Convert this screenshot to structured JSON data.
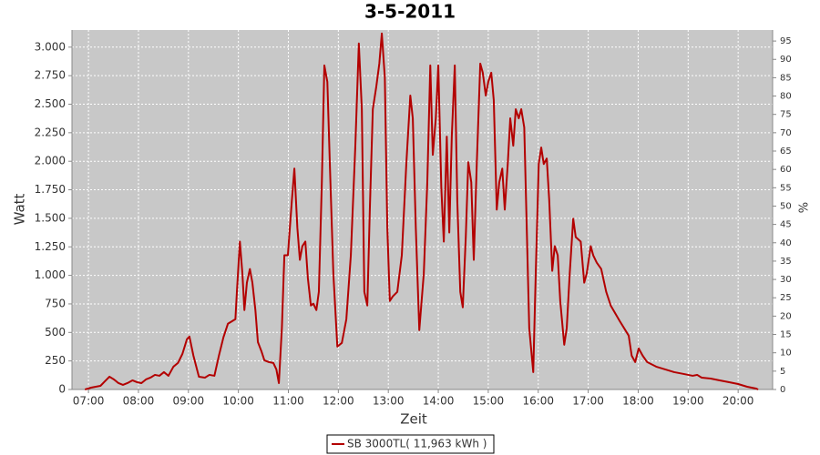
{
  "chart_data": {
    "type": "line",
    "title": "3-5-2011",
    "xlabel": "Zeit",
    "ylabel": "Watt",
    "y2label": "%",
    "xlim": [
      6.67,
      20.69
    ],
    "xticks": [
      {
        "value": 7,
        "label": "07:00"
      },
      {
        "value": 8,
        "label": "08:00"
      },
      {
        "value": 9,
        "label": "09:00"
      },
      {
        "value": 10,
        "label": "10:00"
      },
      {
        "value": 11,
        "label": "11:00"
      },
      {
        "value": 12,
        "label": "12:00"
      },
      {
        "value": 13,
        "label": "13:00"
      },
      {
        "value": 14,
        "label": "14:00"
      },
      {
        "value": 15,
        "label": "15:00"
      },
      {
        "value": 16,
        "label": "16:00"
      },
      {
        "value": 17,
        "label": "17:00"
      },
      {
        "value": 18,
        "label": "18:00"
      },
      {
        "value": 19,
        "label": "19:00"
      },
      {
        "value": 20,
        "label": "20:00"
      }
    ],
    "ylim": [
      0,
      3150
    ],
    "yticks": [
      0,
      250,
      500,
      750,
      {
        "value": 1000,
        "label": "1.000"
      },
      {
        "value": 1250,
        "label": "1.250"
      },
      {
        "value": 1500,
        "label": "1.500"
      },
      {
        "value": 1750,
        "label": "1.750"
      },
      {
        "value": 2000,
        "label": "2.000"
      },
      {
        "value": 2250,
        "label": "2.250"
      },
      {
        "value": 2500,
        "label": "2.500"
      },
      {
        "value": 2750,
        "label": "2.750"
      },
      {
        "value": 3000,
        "label": "3.000"
      }
    ],
    "y2lim": [
      0,
      98
    ],
    "y2ticks": [
      0,
      5,
      10,
      15,
      20,
      25,
      30,
      35,
      40,
      45,
      50,
      55,
      60,
      65,
      70,
      75,
      80,
      85,
      90,
      95
    ],
    "grid": true,
    "legend": "bottom",
    "series": [
      {
        "name": "SB 3000TL( 11,963 kWh )",
        "color": "#b30000",
        "x": [
          6.93,
          7.05,
          7.24,
          7.33,
          7.42,
          7.51,
          7.6,
          7.69,
          7.78,
          7.88,
          7.97,
          8.06,
          8.15,
          8.24,
          8.33,
          8.42,
          8.51,
          8.6,
          8.7,
          8.79,
          8.88,
          8.97,
          9.02,
          9.1,
          9.21,
          9.33,
          9.42,
          9.52,
          9.61,
          9.7,
          9.79,
          9.88,
          9.94,
          9.97,
          10.03,
          10.08,
          10.12,
          10.17,
          10.23,
          10.28,
          10.34,
          10.39,
          10.46,
          10.52,
          10.61,
          10.7,
          10.76,
          10.81,
          10.87,
          10.92,
          10.99,
          11.07,
          11.12,
          11.18,
          11.23,
          11.28,
          11.34,
          11.39,
          11.45,
          11.5,
          11.56,
          11.61,
          11.67,
          11.72,
          11.78,
          11.83,
          11.9,
          11.98,
          12.07,
          12.16,
          12.25,
          12.34,
          12.41,
          12.47,
          12.52,
          12.58,
          12.63,
          12.69,
          12.76,
          12.82,
          12.87,
          12.93,
          12.98,
          13.03,
          13.09,
          13.18,
          13.27,
          13.36,
          13.44,
          13.49,
          13.55,
          13.62,
          13.71,
          13.78,
          13.84,
          13.89,
          13.95,
          14.0,
          14.06,
          14.11,
          14.17,
          14.22,
          14.27,
          14.33,
          14.38,
          14.44,
          14.49,
          14.55,
          14.6,
          14.66,
          14.71,
          14.77,
          14.84,
          14.89,
          14.95,
          15.0,
          15.06,
          15.11,
          15.17,
          15.22,
          15.28,
          15.33,
          15.39,
          15.44,
          15.5,
          15.55,
          15.61,
          15.66,
          15.72,
          15.77,
          15.82,
          15.9,
          15.95,
          16.01,
          16.06,
          16.11,
          16.17,
          16.22,
          16.28,
          16.33,
          16.39,
          16.44,
          16.52,
          16.57,
          16.63,
          16.7,
          16.75,
          16.85,
          16.92,
          16.97,
          17.05,
          17.1,
          17.17,
          17.26,
          17.36,
          17.45,
          17.63,
          17.81,
          17.87,
          17.94,
          18.01,
          18.09,
          18.18,
          18.36,
          18.54,
          18.72,
          18.91,
          19.09,
          19.18,
          19.27,
          19.45,
          19.63,
          19.82,
          20.0,
          20.18,
          20.36,
          20.4
        ],
        "values": [
          0,
          16,
          32,
          72,
          112,
          88,
          56,
          40,
          56,
          80,
          64,
          56,
          88,
          104,
          128,
          120,
          152,
          120,
          200,
          232,
          312,
          440,
          464,
          296,
          112,
          104,
          128,
          120,
          296,
          456,
          576,
          600,
          616,
          856,
          1296,
          1016,
          696,
          936,
          1056,
          936,
          696,
          416,
          336,
          256,
          240,
          232,
          176,
          56,
          536,
          1176,
          1176,
          1656,
          1936,
          1416,
          1136,
          1256,
          1296,
          976,
          736,
          752,
          696,
          856,
          1816,
          2840,
          2696,
          1976,
          1016,
          376,
          408,
          616,
          1176,
          2136,
          3032,
          2456,
          856,
          736,
          1576,
          2456,
          2656,
          2856,
          3120,
          2736,
          1416,
          776,
          816,
          856,
          1176,
          1976,
          2576,
          2376,
          1416,
          520,
          1016,
          1816,
          2840,
          2056,
          2376,
          2840,
          1776,
          1296,
          2216,
          1376,
          2216,
          2840,
          1656,
          856,
          720,
          1336,
          1992,
          1816,
          1136,
          1976,
          2856,
          2776,
          2576,
          2696,
          2776,
          2536,
          1576,
          1816,
          1936,
          1576,
          1976,
          2376,
          2136,
          2456,
          2376,
          2456,
          2296,
          1416,
          536,
          152,
          1016,
          1976,
          2120,
          1976,
          2024,
          1656,
          1040,
          1256,
          1176,
          776,
          392,
          536,
          1016,
          1496,
          1336,
          1296,
          936,
          1016,
          1256,
          1176,
          1112,
          1056,
          856,
          736,
          600,
          472,
          296,
          240,
          360,
          296,
          240,
          200,
          176,
          152,
          136,
          120,
          128,
          104,
          96,
          80,
          64,
          48,
          24,
          8,
          0
        ]
      }
    ]
  }
}
